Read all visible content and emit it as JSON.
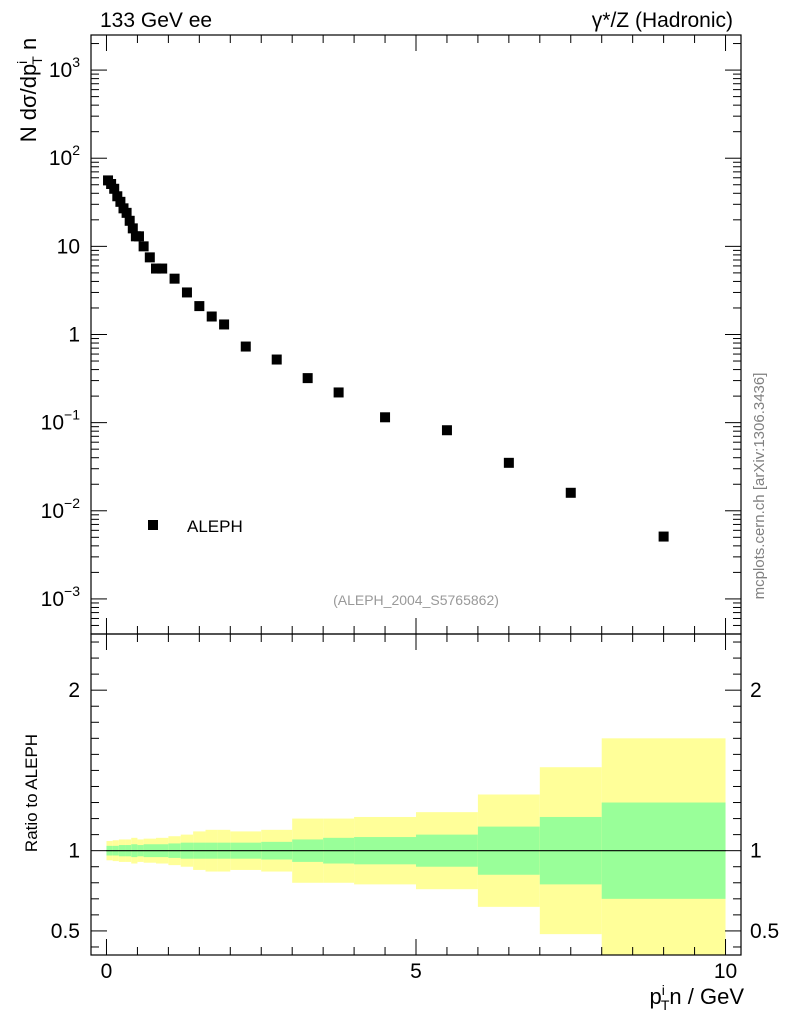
{
  "header": {
    "left": "133 GeV ee",
    "right": "γ*/Z (Hadronic)"
  },
  "watermark": "mcplots.cern.ch [arXiv:1306.3436]",
  "analysis_id": "(ALEPH_2004_S5765862)",
  "colors": {
    "inner_band": "#99ff99",
    "outer_band": "#ffff99",
    "markers": "#000000",
    "analysis_id_text": "#999999",
    "watermark_text": "#808080"
  },
  "chart_data": [
    {
      "type": "scatter",
      "panel": "main",
      "ylabel": "N dσ/dp_T^i n",
      "yscale": "log",
      "ylim": [
        0.0004,
        2500
      ],
      "xlim": [
        -0.25,
        10.25
      ],
      "y_ticks": [
        {
          "value": 1000,
          "label": "10^3"
        },
        {
          "value": 100,
          "label": "10^2"
        },
        {
          "value": 10,
          "label": "10"
        },
        {
          "value": 1,
          "label": "1"
        },
        {
          "value": 0.1,
          "label": "10^-1"
        },
        {
          "value": 0.01,
          "label": "10^-2"
        },
        {
          "value": 0.001,
          "label": "10^-3"
        }
      ],
      "legend": {
        "position": "lower-left",
        "entries": [
          "ALEPH"
        ]
      },
      "series": [
        {
          "name": "ALEPH",
          "marker": "square",
          "x": [
            0.025,
            0.075,
            0.125,
            0.175,
            0.225,
            0.275,
            0.325,
            0.375,
            0.425,
            0.475,
            0.525,
            0.6,
            0.7,
            0.8,
            0.9,
            1.1,
            1.3,
            1.5,
            1.7,
            1.9,
            2.25,
            2.75,
            3.25,
            3.75,
            4.5,
            5.5,
            6.5,
            7.5,
            9.0
          ],
          "y": [
            56,
            51,
            45,
            37,
            32,
            27,
            24,
            19.5,
            16,
            13,
            13,
            10,
            7.5,
            5.6,
            5.6,
            4.3,
            3.0,
            2.1,
            1.6,
            1.3,
            0.73,
            0.52,
            0.32,
            0.22,
            0.115,
            0.082,
            0.035,
            0.016,
            0.0051
          ]
        }
      ]
    },
    {
      "type": "area",
      "panel": "ratio",
      "xlabel": "p_T^i n / GeV",
      "ylabel": "Ratio to ALEPH",
      "ylim": [
        0.35,
        2.35
      ],
      "xlim": [
        -0.25,
        10.25
      ],
      "x_ticks": [
        {
          "value": 0,
          "label": "0"
        },
        {
          "value": 5,
          "label": "5"
        },
        {
          "value": 10,
          "label": "10"
        }
      ],
      "y_ticks": [
        {
          "value": 0.5,
          "label": "0.5"
        },
        {
          "value": 1,
          "label": "1"
        },
        {
          "value": 2,
          "label": "2"
        }
      ],
      "reference_line": 1,
      "bins": [
        {
          "lo": 0.0,
          "hi": 0.1,
          "inner": [
            0.97,
            1.03
          ],
          "outer": [
            0.94,
            1.06
          ]
        },
        {
          "lo": 0.1,
          "hi": 0.2,
          "inner": [
            0.97,
            1.03
          ],
          "outer": [
            0.935,
            1.065
          ]
        },
        {
          "lo": 0.2,
          "hi": 0.3,
          "inner": [
            0.965,
            1.035
          ],
          "outer": [
            0.93,
            1.07
          ]
        },
        {
          "lo": 0.3,
          "hi": 0.4,
          "inner": [
            0.965,
            1.035
          ],
          "outer": [
            0.93,
            1.07
          ]
        },
        {
          "lo": 0.4,
          "hi": 0.5,
          "inner": [
            0.96,
            1.04
          ],
          "outer": [
            0.92,
            1.08
          ]
        },
        {
          "lo": 0.5,
          "hi": 0.6,
          "inner": [
            0.965,
            1.035
          ],
          "outer": [
            0.93,
            1.07
          ]
        },
        {
          "lo": 0.6,
          "hi": 0.8,
          "inner": [
            0.96,
            1.04
          ],
          "outer": [
            0.925,
            1.075
          ]
        },
        {
          "lo": 0.8,
          "hi": 1.0,
          "inner": [
            0.96,
            1.04
          ],
          "outer": [
            0.92,
            1.08
          ]
        },
        {
          "lo": 1.0,
          "hi": 1.2,
          "inner": [
            0.955,
            1.045
          ],
          "outer": [
            0.91,
            1.09
          ]
        },
        {
          "lo": 1.2,
          "hi": 1.4,
          "inner": [
            0.95,
            1.05
          ],
          "outer": [
            0.9,
            1.1
          ]
        },
        {
          "lo": 1.4,
          "hi": 1.6,
          "inner": [
            0.95,
            1.05
          ],
          "outer": [
            0.88,
            1.12
          ]
        },
        {
          "lo": 1.6,
          "hi": 1.8,
          "inner": [
            0.95,
            1.05
          ],
          "outer": [
            0.87,
            1.13
          ]
        },
        {
          "lo": 1.8,
          "hi": 2.0,
          "inner": [
            0.95,
            1.05
          ],
          "outer": [
            0.87,
            1.13
          ]
        },
        {
          "lo": 2.0,
          "hi": 2.5,
          "inner": [
            0.95,
            1.05
          ],
          "outer": [
            0.88,
            1.12
          ]
        },
        {
          "lo": 2.5,
          "hi": 3.0,
          "inner": [
            0.945,
            1.055
          ],
          "outer": [
            0.87,
            1.13
          ]
        },
        {
          "lo": 3.0,
          "hi": 3.5,
          "inner": [
            0.93,
            1.07
          ],
          "outer": [
            0.8,
            1.2
          ]
        },
        {
          "lo": 3.5,
          "hi": 4.0,
          "inner": [
            0.92,
            1.08
          ],
          "outer": [
            0.8,
            1.2
          ]
        },
        {
          "lo": 4.0,
          "hi": 5.0,
          "inner": [
            0.915,
            1.085
          ],
          "outer": [
            0.79,
            1.21
          ]
        },
        {
          "lo": 5.0,
          "hi": 6.0,
          "inner": [
            0.9,
            1.1
          ],
          "outer": [
            0.76,
            1.24
          ]
        },
        {
          "lo": 6.0,
          "hi": 7.0,
          "inner": [
            0.85,
            1.15
          ],
          "outer": [
            0.65,
            1.35
          ]
        },
        {
          "lo": 7.0,
          "hi": 8.0,
          "inner": [
            0.79,
            1.21
          ],
          "outer": [
            0.48,
            1.52
          ]
        },
        {
          "lo": 8.0,
          "hi": 10.0,
          "inner": [
            0.7,
            1.3
          ],
          "outer": [
            0.3,
            1.7
          ]
        }
      ]
    }
  ]
}
